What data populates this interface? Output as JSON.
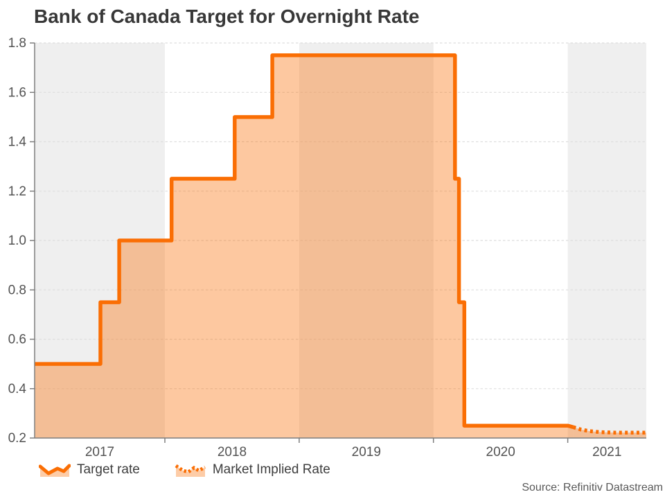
{
  "header": {
    "title": "Bank of Canada Target for Overnight Rate"
  },
  "footer": {
    "source": "Source: Refinitiv Datastream"
  },
  "chart_data": {
    "type": "area",
    "subtype": "step-line-with-fill",
    "title": "Bank of Canada Target for Overnight Rate",
    "xlabel": "",
    "ylabel": "",
    "ylim": [
      0.2,
      1.8
    ],
    "xlim": [
      2017.03,
      2021.585
    ],
    "grid": "dashed-horizontal",
    "legend_position": "bottom-left",
    "ytick_labels": [
      "0.2",
      "0.4",
      "0.6",
      "0.8",
      "1.0",
      "1.2",
      "1.4",
      "1.6",
      "1.8"
    ],
    "xtick_year_starts": [
      2018,
      2019,
      2020,
      2021
    ],
    "year_bands_start": 2017,
    "year_bands": [
      {
        "label": "2017",
        "shaded": true
      },
      {
        "label": "2018",
        "shaded": false
      },
      {
        "label": "2019",
        "shaded": true
      },
      {
        "label": "2020",
        "shaded": false
      },
      {
        "label": "2021",
        "shaded": true
      }
    ],
    "series": [
      {
        "name": "Target rate",
        "style": "solid",
        "points": [
          [
            2017.03,
            0.5
          ],
          [
            2017.52,
            0.5
          ],
          [
            2017.52,
            0.75
          ],
          [
            2017.66,
            0.75
          ],
          [
            2017.66,
            1.0
          ],
          [
            2018.05,
            1.0
          ],
          [
            2018.05,
            1.25
          ],
          [
            2018.52,
            1.25
          ],
          [
            2018.52,
            1.5
          ],
          [
            2018.8,
            1.5
          ],
          [
            2018.8,
            1.75
          ],
          [
            2020.16,
            1.75
          ],
          [
            2020.16,
            1.25
          ],
          [
            2020.19,
            1.25
          ],
          [
            2020.19,
            0.75
          ],
          [
            2020.23,
            0.75
          ],
          [
            2020.23,
            0.25
          ],
          [
            2021.0,
            0.25
          ],
          [
            2021.04,
            0.244
          ]
        ]
      },
      {
        "name": "Market Implied Rate",
        "style": "dotted",
        "points": [
          [
            2021.04,
            0.244
          ],
          [
            2021.1,
            0.234
          ],
          [
            2021.16,
            0.228
          ],
          [
            2021.24,
            0.224
          ],
          [
            2021.35,
            0.222
          ],
          [
            2021.585,
            0.222
          ]
        ]
      }
    ],
    "colors": {
      "line": "#fa6e04",
      "fill": "#fa6e04",
      "fill_opacity": 0.38,
      "shaded_band": "#efefef",
      "gridline": "#dedede",
      "axis": "#7d7d7d",
      "tick_label": "#525252",
      "title": "#383838"
    }
  }
}
